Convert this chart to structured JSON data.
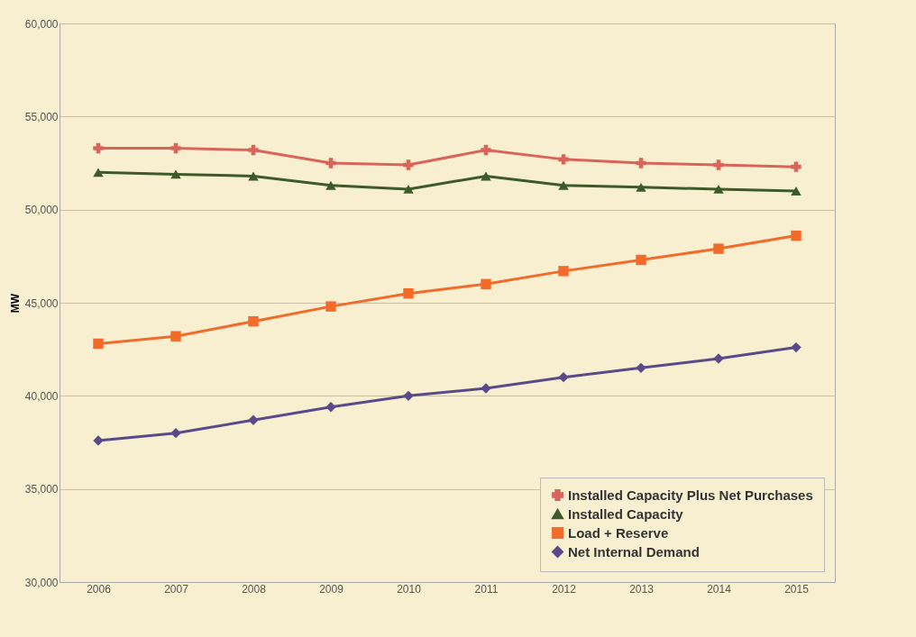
{
  "chart_data": {
    "type": "line",
    "ylabel": "MW",
    "categories": [
      "2006",
      "2007",
      "2008",
      "2009",
      "2010",
      "2011",
      "2012",
      "2013",
      "2014",
      "2015"
    ],
    "series": [
      {
        "name": "Installed Capacity Plus Net Purchases",
        "color": "#d8645a",
        "marker": "cross",
        "values": [
          53300,
          53300,
          53200,
          52500,
          52400,
          53200,
          52700,
          52500,
          52400,
          52300
        ]
      },
      {
        "name": "Installed Capacity",
        "color": "#3d5a2a",
        "marker": "triangle",
        "values": [
          52000,
          51900,
          51800,
          51300,
          51100,
          51800,
          51300,
          51200,
          51100,
          51000
        ]
      },
      {
        "name": "Load + Reserve",
        "color": "#f26b2a",
        "marker": "square",
        "values": [
          42800,
          43200,
          44000,
          44800,
          45500,
          46000,
          46700,
          47300,
          47900,
          48600
        ]
      },
      {
        "name": "Net Internal Demand",
        "color": "#5b4a8a",
        "marker": "diamond",
        "values": [
          37600,
          38000,
          38700,
          39400,
          40000,
          40400,
          41000,
          41500,
          42000,
          42600
        ]
      }
    ],
    "ylim": [
      30000,
      60000
    ],
    "yticks": [
      {
        "value": 30000,
        "label": "30,000"
      },
      {
        "value": 35000,
        "label": "35,000"
      },
      {
        "value": 40000,
        "label": "40,000"
      },
      {
        "value": 45000,
        "label": "45,000"
      },
      {
        "value": 50000,
        "label": "50,000"
      },
      {
        "value": 55000,
        "label": "55,000"
      },
      {
        "value": 60000,
        "label": "60,000"
      }
    ],
    "grid": "y",
    "legend": "bottom right",
    "line_style": "solid"
  }
}
